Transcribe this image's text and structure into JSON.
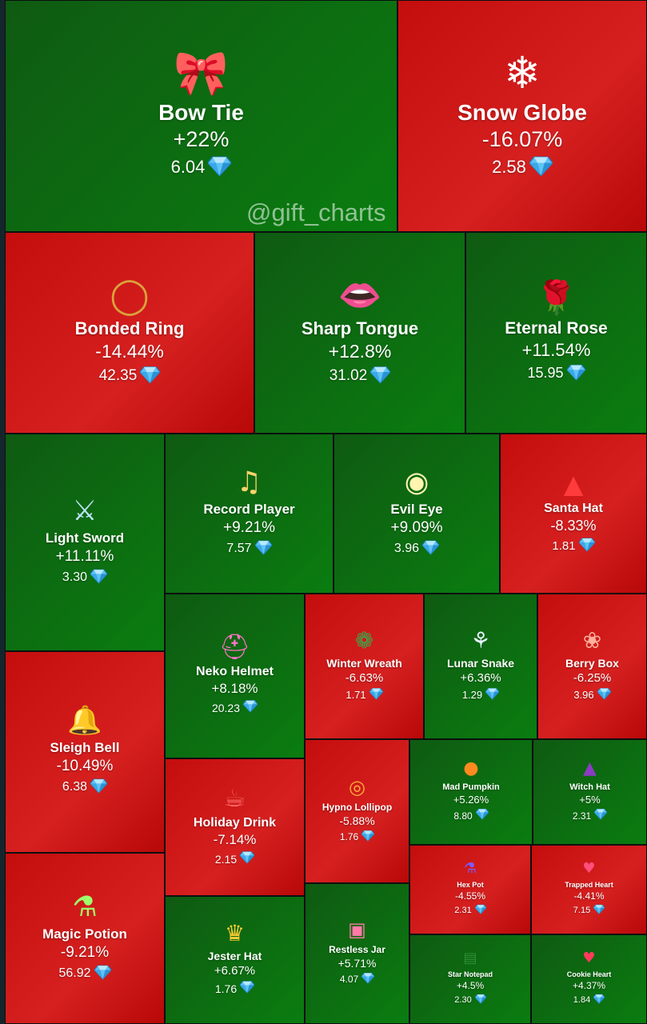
{
  "watermark": "@gift_charts",
  "colors": {
    "up": "#0a7d10",
    "down": "#d62020",
    "diamond": "#5fc3f5"
  },
  "chart_data": {
    "type": "treemap",
    "value_unit_icon": "diamond-icon",
    "items": [
      {
        "name": "Bow Tie",
        "change": "+22%",
        "price": "6.04",
        "icon": "bow-tie-icon"
      },
      {
        "name": "Snow Globe",
        "change": "-16.07%",
        "price": "2.58",
        "icon": "snow-globe-icon"
      },
      {
        "name": "Bonded Ring",
        "change": "-14.44%",
        "price": "42.35",
        "icon": "ring-icon"
      },
      {
        "name": "Sharp Tongue",
        "change": "+12.8%",
        "price": "31.02",
        "icon": "lips-icon"
      },
      {
        "name": "Eternal Rose",
        "change": "+11.54%",
        "price": "15.95",
        "icon": "rose-icon"
      },
      {
        "name": "Light Sword",
        "change": "+11.11%",
        "price": "3.30",
        "icon": "sword-icon"
      },
      {
        "name": "Record Player",
        "change": "+9.21%",
        "price": "7.57",
        "icon": "record-player-icon"
      },
      {
        "name": "Evil Eye",
        "change": "+9.09%",
        "price": "3.96",
        "icon": "eye-icon"
      },
      {
        "name": "Santa Hat",
        "change": "-8.33%",
        "price": "1.81",
        "icon": "santa-hat-icon"
      },
      {
        "name": "Neko Helmet",
        "change": "+8.18%",
        "price": "20.23",
        "icon": "helmet-icon"
      },
      {
        "name": "Winter Wreath",
        "change": "-6.63%",
        "price": "1.71",
        "icon": "wreath-icon"
      },
      {
        "name": "Lunar Snake",
        "change": "+6.36%",
        "price": "1.29",
        "icon": "snake-icon"
      },
      {
        "name": "Berry Box",
        "change": "-6.25%",
        "price": "3.96",
        "icon": "berry-box-icon"
      },
      {
        "name": "Sleigh Bell",
        "change": "-10.49%",
        "price": "6.38",
        "icon": "bell-icon"
      },
      {
        "name": "Holiday Drink",
        "change": "-7.14%",
        "price": "2.15",
        "icon": "drink-icon"
      },
      {
        "name": "Hypno Lollipop",
        "change": "-5.88%",
        "price": "1.76",
        "icon": "lollipop-icon"
      },
      {
        "name": "Mad Pumpkin",
        "change": "+5.26%",
        "price": "8.80",
        "icon": "pumpkin-icon"
      },
      {
        "name": "Witch Hat",
        "change": "+5%",
        "price": "2.31",
        "icon": "witch-hat-icon"
      },
      {
        "name": "Hex Pot",
        "change": "-4.55%",
        "price": "2.31",
        "icon": "pot-icon"
      },
      {
        "name": "Trapped Heart",
        "change": "-4.41%",
        "price": "7.15",
        "icon": "heart-cage-icon"
      },
      {
        "name": "Magic Potion",
        "change": "-9.21%",
        "price": "56.92",
        "icon": "potion-icon"
      },
      {
        "name": "Jester Hat",
        "change": "+6.67%",
        "price": "1.76",
        "icon": "jester-hat-icon"
      },
      {
        "name": "Restless Jar",
        "change": "+5.71%",
        "price": "4.07",
        "icon": "jar-icon"
      },
      {
        "name": "Star Notepad",
        "change": "+4.5%",
        "price": "2.30",
        "icon": "notepad-icon"
      },
      {
        "name": "Cookie Heart",
        "change": "+4.37%",
        "price": "1.84",
        "icon": "cookie-heart-icon"
      }
    ]
  }
}
